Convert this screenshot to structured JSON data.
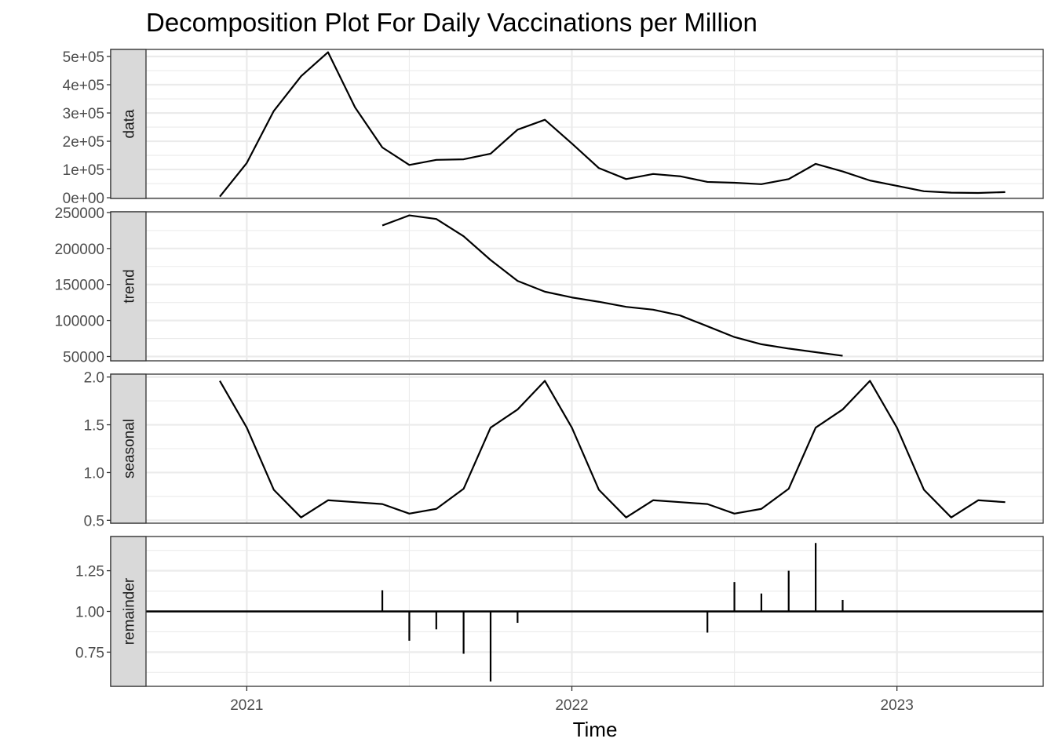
{
  "chart_data": {
    "type": "line",
    "title": "Decomposition Plot For Daily Vaccinations per Million",
    "xlabel": "Time",
    "x_tick_labels": [
      "2021",
      "2022",
      "2023"
    ],
    "x_tick_values": [
      2021,
      2022,
      2023
    ],
    "xlim": [
      2020.69,
      2023.45
    ],
    "x": [
      2020.917,
      2021.0,
      2021.083,
      2021.167,
      2021.25,
      2021.333,
      2021.417,
      2021.5,
      2021.583,
      2021.667,
      2021.75,
      2021.833,
      2021.917,
      2022.0,
      2022.083,
      2022.167,
      2022.25,
      2022.333,
      2022.417,
      2022.5,
      2022.583,
      2022.667,
      2022.75,
      2022.833,
      2022.917,
      2023.0,
      2023.083,
      2023.167,
      2023.25,
      2023.333
    ],
    "panels": [
      {
        "name": "data",
        "strip_label": "data",
        "ylim": [
          -2500,
          525000
        ],
        "y_ticks": [
          0,
          100000,
          200000,
          300000,
          400000,
          500000
        ],
        "y_tick_labels": [
          "0e+00",
          "1e+05",
          "2e+05",
          "3e+05",
          "4e+05",
          "5e+05"
        ],
        "style": "line",
        "values": [
          4000,
          123000,
          307000,
          430000,
          515000,
          320000,
          178000,
          116000,
          134000,
          136000,
          156000,
          241000,
          276000,
          192000,
          105000,
          66000,
          84000,
          76000,
          56000,
          53000,
          48000,
          66000,
          120000,
          93000,
          61000,
          42000,
          23000,
          18000,
          17000,
          20000
        ]
      },
      {
        "name": "trend",
        "strip_label": "trend",
        "ylim": [
          44000,
          251000
        ],
        "y_ticks": [
          50000,
          100000,
          150000,
          200000,
          250000
        ],
        "y_tick_labels": [
          "50000",
          "100000",
          "150000",
          "200000",
          "250000"
        ],
        "style": "line",
        "values": [
          null,
          null,
          null,
          null,
          null,
          null,
          232000,
          246000,
          241000,
          217000,
          184000,
          155000,
          140000,
          132000,
          126000,
          119000,
          115000,
          107000,
          92000,
          77000,
          67000,
          61000,
          56000,
          51000,
          null,
          null,
          null,
          null,
          null,
          null
        ]
      },
      {
        "name": "seasonal",
        "strip_label": "seasonal",
        "ylim": [
          0.47,
          2.03
        ],
        "y_ticks": [
          0.5,
          1.0,
          1.5,
          2.0
        ],
        "y_tick_labels": [
          "0.5",
          "1.0",
          "1.5",
          "2.0"
        ],
        "style": "line",
        "values": [
          1.96,
          1.47,
          0.82,
          0.53,
          0.71,
          0.69,
          0.67,
          0.57,
          0.62,
          0.83,
          1.47,
          1.66,
          1.96,
          1.47,
          0.82,
          0.53,
          0.71,
          0.69,
          0.67,
          0.57,
          0.62,
          0.83,
          1.47,
          1.66,
          1.96,
          1.47,
          0.82,
          0.53,
          0.71,
          0.69
        ]
      },
      {
        "name": "remainder",
        "strip_label": "remainder",
        "ylim": [
          0.54,
          1.46
        ],
        "y_ticks": [
          0.75,
          1.0,
          1.25
        ],
        "y_tick_labels": [
          "0.75",
          "1.00",
          "1.25"
        ],
        "style": "bar",
        "baseline": 1.0,
        "values": [
          null,
          null,
          null,
          null,
          null,
          null,
          1.13,
          0.82,
          0.89,
          0.74,
          0.57,
          0.93,
          null,
          null,
          null,
          null,
          null,
          null,
          0.87,
          1.18,
          1.11,
          1.25,
          1.42,
          1.07,
          null,
          null,
          null,
          null,
          null,
          null
        ]
      }
    ],
    "grid": true,
    "legend": "none"
  }
}
